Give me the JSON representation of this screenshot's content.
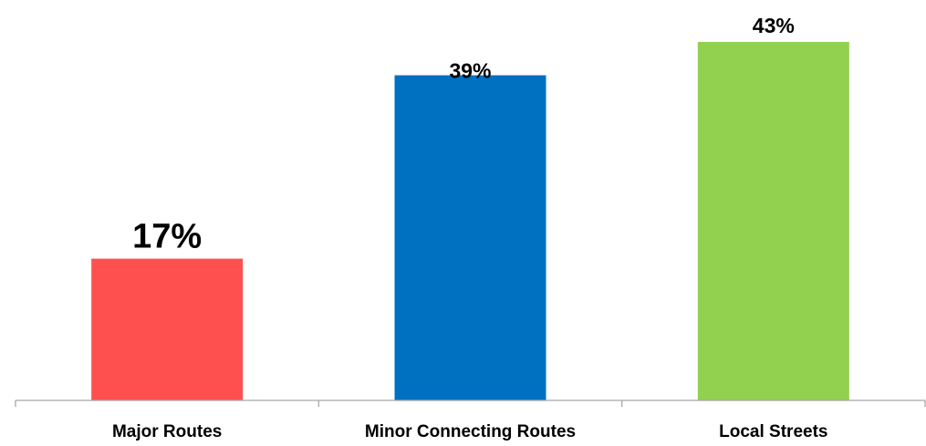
{
  "chart_data": {
    "type": "bar",
    "categories": [
      "Major Routes",
      "Minor Connecting Routes",
      "Local Streets"
    ],
    "values": [
      17,
      39,
      43
    ],
    "data_labels": [
      "17%",
      "39%",
      "43%"
    ],
    "colors": [
      "#ff5050",
      "#0070c0",
      "#92d050"
    ],
    "title": "",
    "xlabel": "",
    "ylabel": "",
    "ylim": [
      0,
      45
    ],
    "grid": false,
    "legend": "none"
  }
}
